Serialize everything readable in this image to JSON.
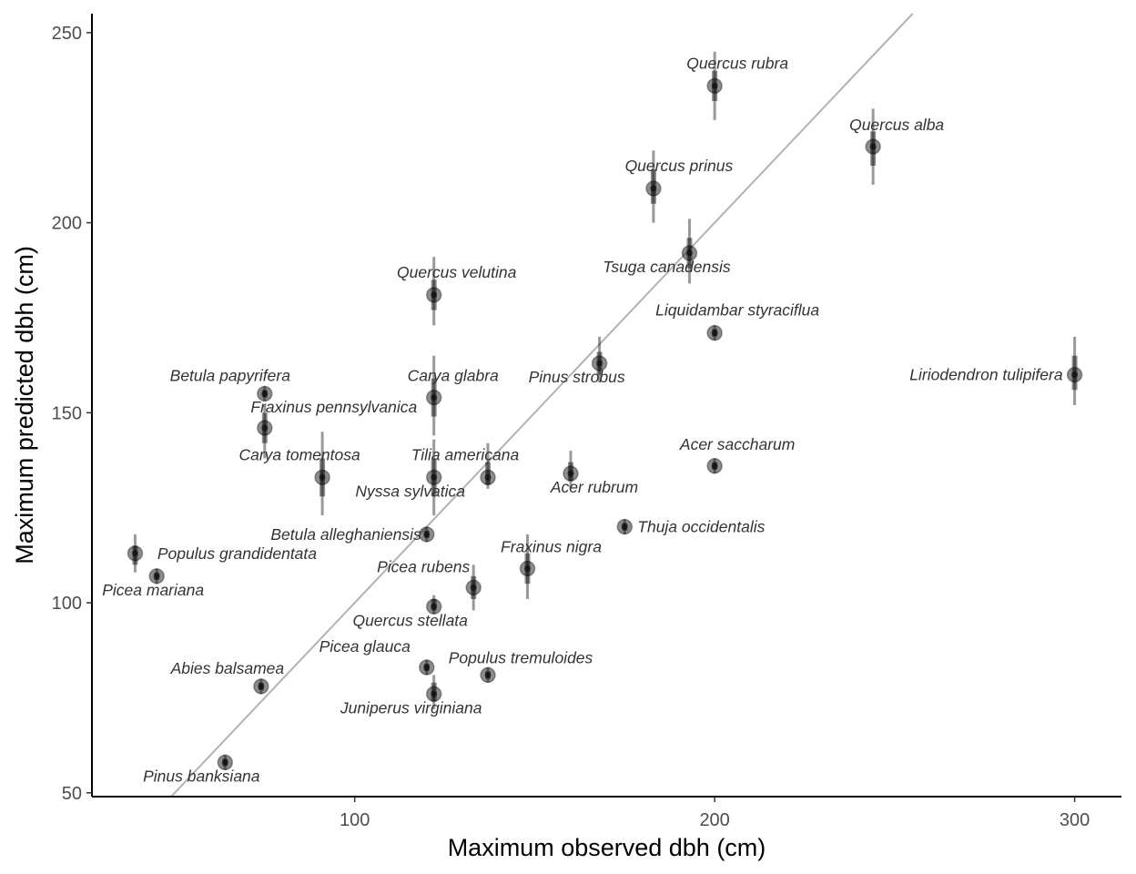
{
  "chart_data": {
    "type": "scatter",
    "title": "",
    "xlabel": "Maximum observed dbh (cm)",
    "ylabel": "Maximum predicted dbh (cm)",
    "xlim": [
      27,
      313
    ],
    "ylim": [
      49,
      255
    ],
    "xticks": [
      100,
      200,
      300
    ],
    "yticks": [
      50,
      100,
      150,
      200,
      250
    ],
    "grid": false,
    "reference_line": {
      "slope": 1,
      "intercept": 0,
      "color": "#b3b3b3"
    },
    "point_color": "#000000",
    "points": [
      {
        "species": "Quercus rubra",
        "x": 200,
        "y": 236,
        "lo": 227,
        "hi": 245,
        "lo50": 232,
        "hi50": 240
      },
      {
        "species": "Quercus alba",
        "x": 244,
        "y": 220,
        "lo": 210,
        "hi": 230,
        "lo50": 215,
        "hi50": 224
      },
      {
        "species": "Quercus prinus",
        "x": 183,
        "y": 209,
        "lo": 200,
        "hi": 219,
        "lo50": 205,
        "hi50": 214
      },
      {
        "species": "Tsuga canadensis",
        "x": 193,
        "y": 192,
        "lo": 184,
        "hi": 201,
        "lo50": 188,
        "hi50": 196
      },
      {
        "species": "Quercus velutina",
        "x": 122,
        "y": 181,
        "lo": 173,
        "hi": 191,
        "lo50": 177,
        "hi50": 185
      },
      {
        "species": "Liquidambar styraciflua",
        "x": 200,
        "y": 171,
        "lo": 169,
        "hi": 173,
        "lo50": 170,
        "hi50": 172
      },
      {
        "species": "Pinus strobus",
        "x": 168,
        "y": 163,
        "lo": 158,
        "hi": 170,
        "lo50": 160,
        "hi50": 166
      },
      {
        "species": "Liriodendron tulipifera",
        "x": 300,
        "y": 160,
        "lo": 152,
        "hi": 170,
        "lo50": 156,
        "hi50": 165
      },
      {
        "species": "Betula papyrifera",
        "x": 75,
        "y": 155,
        "lo": 153,
        "hi": 157,
        "lo50": 154,
        "hi50": 156
      },
      {
        "species": "Carya glabra",
        "x": 122,
        "y": 154,
        "lo": 144,
        "hi": 165,
        "lo50": 149,
        "hi50": 159
      },
      {
        "species": "Fraxinus pennsylvanica",
        "x": 75,
        "y": 146,
        "lo": 138,
        "hi": 152,
        "lo50": 142,
        "hi50": 150
      },
      {
        "species": "Acer saccharum",
        "x": 200,
        "y": 136,
        "lo": 134,
        "hi": 138,
        "lo50": 135,
        "hi50": 137
      },
      {
        "species": "Acer rubrum",
        "x": 160,
        "y": 134,
        "lo": 130,
        "hi": 140,
        "lo50": 132,
        "hi50": 137
      },
      {
        "species": "Carya tomentosa",
        "x": 91,
        "y": 133,
        "lo": 123,
        "hi": 145,
        "lo50": 128,
        "hi50": 138
      },
      {
        "species": "Tilia americana",
        "x": 137,
        "y": 133,
        "lo": 130,
        "hi": 142,
        "lo50": 131,
        "hi50": 137
      },
      {
        "species": "Nyssa sylvatica",
        "x": 122,
        "y": 133,
        "lo": 123,
        "hi": 143,
        "lo50": 128,
        "hi50": 138
      },
      {
        "species": "Thuja occidentalis",
        "x": 175,
        "y": 120,
        "lo": 118,
        "hi": 122,
        "lo50": 119,
        "hi50": 121
      },
      {
        "species": "Betula alleghaniensis",
        "x": 120,
        "y": 118,
        "lo": 116,
        "hi": 120,
        "lo50": 117,
        "hi50": 119
      },
      {
        "species": "Populus grandidentata",
        "x": 39,
        "y": 113,
        "lo": 108,
        "hi": 118,
        "lo50": 110,
        "hi50": 115
      },
      {
        "species": "Fraxinus nigra",
        "x": 148,
        "y": 109,
        "lo": 101,
        "hi": 118,
        "lo50": 105,
        "hi50": 113
      },
      {
        "species": "Picea mariana",
        "x": 45,
        "y": 107,
        "lo": 105,
        "hi": 109,
        "lo50": 106,
        "hi50": 108
      },
      {
        "species": "Picea rubens",
        "x": 133,
        "y": 104,
        "lo": 98,
        "hi": 110,
        "lo50": 101,
        "hi50": 107
      },
      {
        "species": "Quercus stellata",
        "x": 122,
        "y": 99,
        "lo": 97,
        "hi": 102,
        "lo50": 98,
        "hi50": 101
      },
      {
        "species": "Picea glauca",
        "x": 120,
        "y": 83,
        "lo": 81,
        "hi": 85,
        "lo50": 82,
        "hi50": 84
      },
      {
        "species": "Populus tremuloides",
        "x": 137,
        "y": 81,
        "lo": 79,
        "hi": 83,
        "lo50": 80,
        "hi50": 82
      },
      {
        "species": "Abies balsamea",
        "x": 74,
        "y": 78,
        "lo": 76,
        "hi": 80,
        "lo50": 77,
        "hi50": 79
      },
      {
        "species": "Juniperus virginiana",
        "x": 122,
        "y": 76,
        "lo": 72,
        "hi": 81,
        "lo50": 74,
        "hi50": 79
      },
      {
        "species": "Pinus banksiana",
        "x": 64,
        "y": 58,
        "lo": 56,
        "hi": 60,
        "lo50": 57,
        "hi50": 59
      }
    ]
  }
}
